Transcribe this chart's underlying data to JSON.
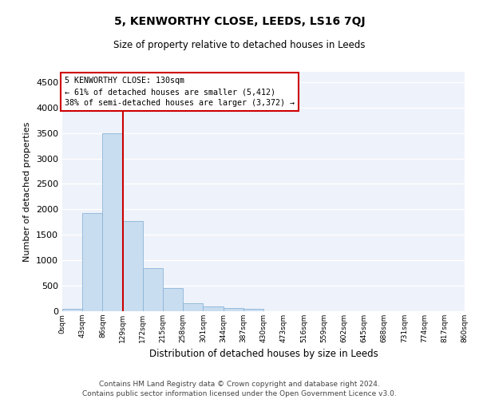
{
  "title": "5, KENWORTHY CLOSE, LEEDS, LS16 7QJ",
  "subtitle": "Size of property relative to detached houses in Leeds",
  "xlabel": "Distribution of detached houses by size in Leeds",
  "ylabel": "Number of detached properties",
  "footer_line1": "Contains HM Land Registry data © Crown copyright and database right 2024.",
  "footer_line2": "Contains public sector information licensed under the Open Government Licence v3.0.",
  "bar_color": "#c9ddf0",
  "bar_edge_color": "#8ab4d8",
  "background_color": "#eef2fa",
  "grid_color": "#ffffff",
  "annotation_box_color": "#cc0000",
  "property_line_color": "#cc0000",
  "annotation_text_line1": "5 KENWORTHY CLOSE: 130sqm",
  "annotation_text_line2": "← 61% of detached houses are smaller (5,412)",
  "annotation_text_line3": "38% of semi-detached houses are larger (3,372) →",
  "ylim": [
    0,
    4700
  ],
  "yticks": [
    0,
    500,
    1000,
    1500,
    2000,
    2500,
    3000,
    3500,
    4000,
    4500
  ],
  "bin_edges": [
    0,
    43,
    86,
    129,
    172,
    215,
    258,
    301,
    344,
    387,
    430,
    473,
    516,
    559,
    602,
    645,
    688,
    731,
    774,
    817,
    860
  ],
  "bar_heights": [
    50,
    1930,
    3500,
    1775,
    840,
    455,
    155,
    95,
    60,
    50,
    0,
    0,
    0,
    0,
    0,
    0,
    0,
    0,
    0,
    0
  ],
  "tick_labels": [
    "0sqm",
    "43sqm",
    "86sqm",
    "129sqm",
    "172sqm",
    "215sqm",
    "258sqm",
    "301sqm",
    "344sqm",
    "387sqm",
    "430sqm",
    "473sqm",
    "516sqm",
    "559sqm",
    "602sqm",
    "645sqm",
    "688sqm",
    "731sqm",
    "774sqm",
    "817sqm",
    "860sqm"
  ],
  "property_line_x": 129
}
